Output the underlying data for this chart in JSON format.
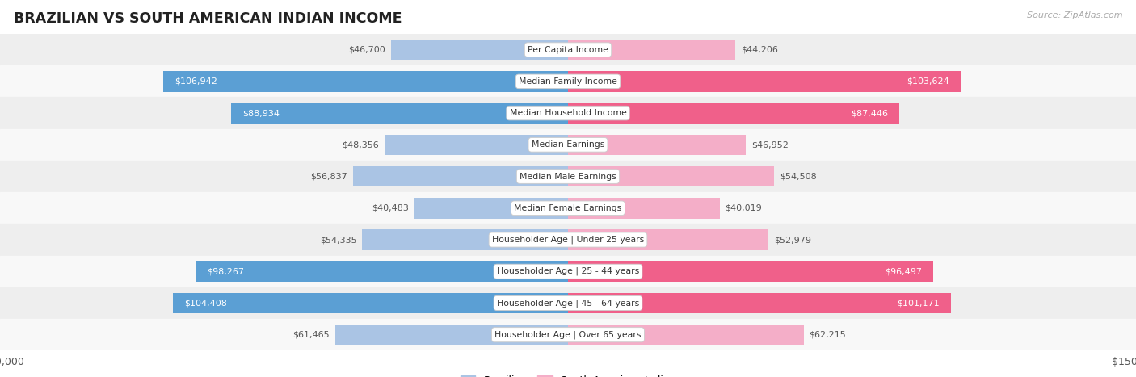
{
  "title": "BRAZILIAN VS SOUTH AMERICAN INDIAN INCOME",
  "source": "Source: ZipAtlas.com",
  "categories": [
    "Per Capita Income",
    "Median Family Income",
    "Median Household Income",
    "Median Earnings",
    "Median Male Earnings",
    "Median Female Earnings",
    "Householder Age | Under 25 years",
    "Householder Age | 25 - 44 years",
    "Householder Age | 45 - 64 years",
    "Householder Age | Over 65 years"
  ],
  "brazilian": [
    46700,
    106942,
    88934,
    48356,
    56837,
    40483,
    54335,
    98267,
    104408,
    61465
  ],
  "south_american_indian": [
    44206,
    103624,
    87446,
    46952,
    54508,
    40019,
    52979,
    96497,
    101171,
    62215
  ],
  "max_value": 150000,
  "bar_color_blue_light": "#aac4e4",
  "bar_color_pink_light": "#f4aec8",
  "bar_color_blue_dark": "#5b9fd4",
  "bar_color_pink_dark": "#f0608a",
  "row_bg_even": "#eeeeee",
  "row_bg_odd": "#f8f8f8",
  "label_dark": "#555555",
  "label_white": "#ffffff",
  "legend_blue": "#aac4e4",
  "legend_pink": "#f4aec8",
  "blue_threshold": 75000,
  "pink_threshold": 75000
}
